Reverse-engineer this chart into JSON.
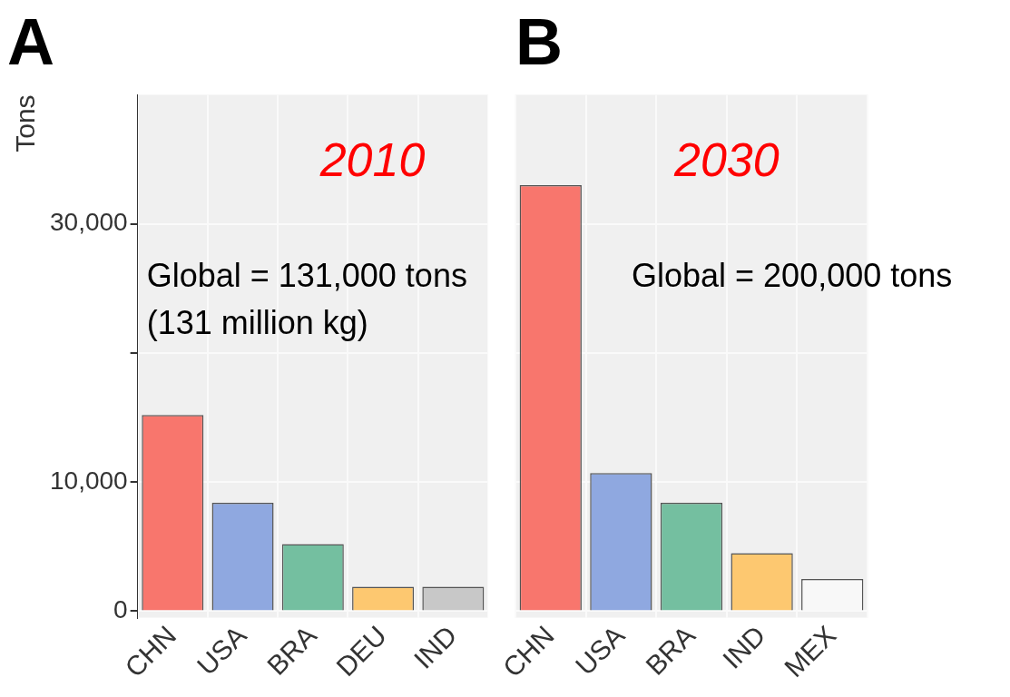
{
  "chart_data": [
    {
      "type": "bar",
      "title": "A",
      "ylabel": "Tons",
      "categories": [
        "CHN",
        "USA",
        "BRA",
        "DEU",
        "IND"
      ],
      "values": [
        15200,
        8400,
        5200,
        1900,
        1900
      ],
      "colors": [
        "#f8766d",
        "#8fa8e0",
        "#74bfa0",
        "#fdc870",
        "#c8c8c8"
      ],
      "ylim": [
        -500,
        40000
      ],
      "yticks": [
        0,
        {
          "value": 10000,
          "label": "10,000"
        },
        {
          "value": 20000,
          "label": null
        },
        {
          "value": 30000,
          "label": "30,000"
        }
      ],
      "grid": true,
      "annotations": [
        "2010",
        "Global = 131,000 tons",
        "(131 million kg)"
      ]
    },
    {
      "type": "bar",
      "title": "B",
      "categories": [
        "CHN",
        "USA",
        "BRA",
        "IND",
        "MEX"
      ],
      "values": [
        33000,
        10700,
        8400,
        4500,
        2500
      ],
      "colors": [
        "#f8766d",
        "#8fa8e0",
        "#74bfa0",
        "#fdc870",
        "#f8f8f8"
      ],
      "ylim": [
        -500,
        40000
      ],
      "yticks": [
        0,
        10000,
        20000,
        30000
      ],
      "grid": true,
      "tick_labels": "x",
      "annotations": [
        "2030",
        "Global = 200,000 tons"
      ]
    }
  ]
}
